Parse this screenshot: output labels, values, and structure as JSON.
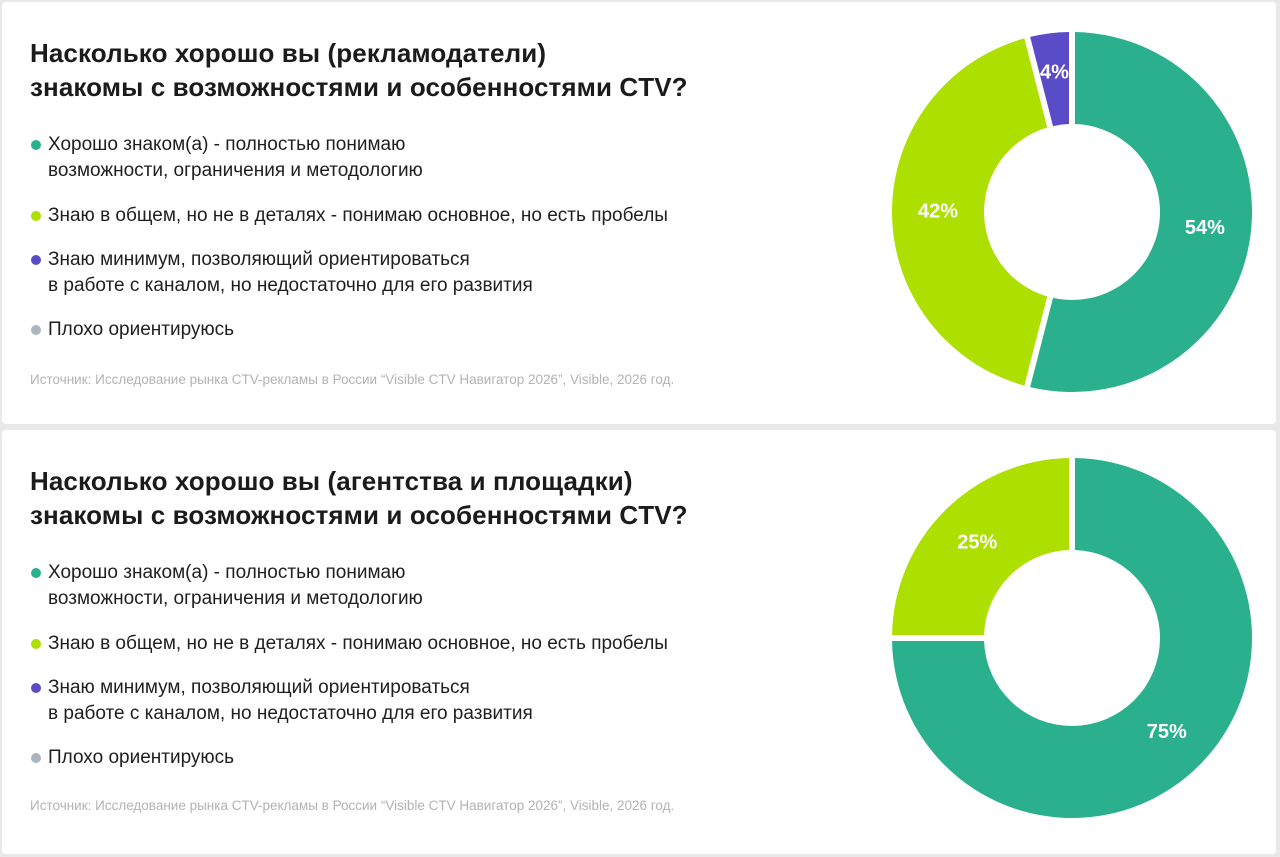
{
  "colors": {
    "well": "#2bb08e",
    "general": "#addf00",
    "minimum": "#5a4bc7",
    "poor": "#aab5c0",
    "label_text": "#ffffff"
  },
  "legend": [
    {
      "key": "well",
      "lines": [
        "Хорошо знаком(а) - полностью понимаю",
        "возможности, ограничения и методологию"
      ]
    },
    {
      "key": "general",
      "lines": [
        "Знаю в общем, но не в деталях - понимаю основное, но есть пробелы"
      ]
    },
    {
      "key": "minimum",
      "lines": [
        "Знаю минимум, позволяющий ориентироваться",
        "в работе с каналом, но недостаточно для его развития"
      ]
    },
    {
      "key": "poor",
      "lines": [
        "Плохо ориентируюсь"
      ]
    }
  ],
  "source": "Источник: Исследование рынка CTV-рекламы в России “Visible CTV Навигатор 2026”, Visible, 2026 год.",
  "panels": [
    {
      "title_lines": [
        "Насколько хорошо вы (рекламодатели)",
        "знакомы с возможностями и особенностями CTV?"
      ]
    },
    {
      "title_lines": [
        "Насколько хорошо вы (агентства и площадки)",
        "знакомы с возможностями и особенностями CTV?"
      ]
    }
  ],
  "chart_data": [
    {
      "type": "pie",
      "title": "Насколько хорошо вы (рекламодатели) знакомы с возможностями и особенностями CTV?",
      "categories": [
        "Хорошо знаком(а) - полностью понимаю возможности, ограничения и методологию",
        "Знаю в общем, но не в деталях - понимаю основное, но есть пробелы",
        "Знаю минимум, позволяющий ориентироваться в работе с каналом, но недостаточно для его развития",
        "Плохо ориентируюсь"
      ],
      "keys": [
        "well",
        "general",
        "minimum",
        "poor"
      ],
      "values": [
        54,
        42,
        4,
        0
      ],
      "labels": [
        "54%",
        "42%",
        "4%",
        ""
      ],
      "donut": true,
      "legend": "left"
    },
    {
      "type": "pie",
      "title": "Насколько хорошо вы (агентства и площадки) знакомы с возможностями и особенностями CTV?",
      "categories": [
        "Хорошо знаком(а) - полностью понимаю возможности, ограничения и методологию",
        "Знаю в общем, но не в деталях - понимаю основное, но есть пробелы",
        "Знаю минимум, позволяющий ориентироваться в работе с каналом, но недостаточно для его развития",
        "Плохо ориентируюсь"
      ],
      "keys": [
        "well",
        "general",
        "minimum",
        "poor"
      ],
      "values": [
        75,
        25,
        0,
        0
      ],
      "labels": [
        "75%",
        "25%",
        "",
        ""
      ],
      "donut": true,
      "legend": "left"
    }
  ]
}
